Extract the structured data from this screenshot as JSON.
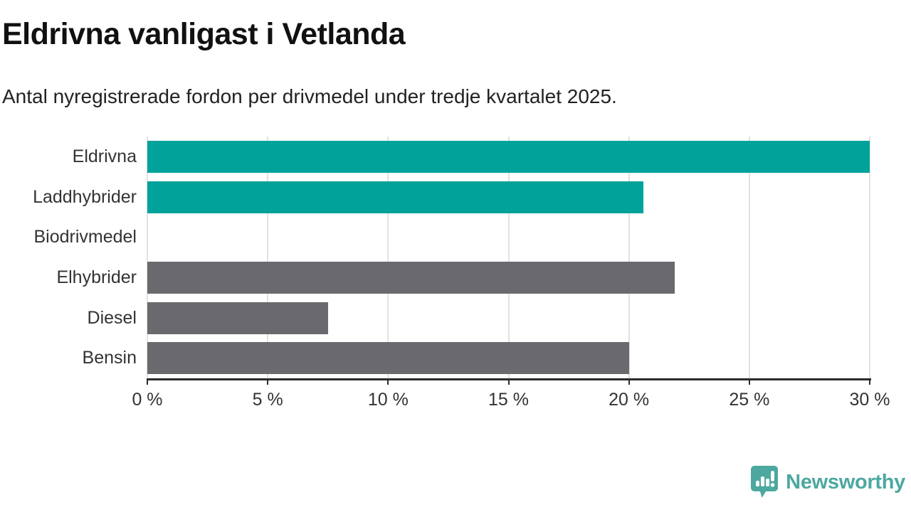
{
  "title": "Eldrivna vanligast i Vetlanda",
  "subtitle": "Antal nyregistrerade fordon per drivmedel under tredje kvartalet 2025.",
  "chart_data": {
    "type": "bar",
    "orientation": "horizontal",
    "title": "Eldrivna vanligast i Vetlanda",
    "subtitle": "Antal nyregistrerade fordon per drivmedel under tredje kvartalet 2025.",
    "categories": [
      "Eldrivna",
      "Laddhybrider",
      "Biodrivmedel",
      "Elhybrider",
      "Diesel",
      "Bensin"
    ],
    "values": [
      30,
      20.6,
      0,
      21.9,
      7.5,
      20
    ],
    "unit": "%",
    "bar_colors": [
      "#00a29a",
      "#00a29a",
      "#00a29a",
      "#6a6a6e",
      "#6a6a6e",
      "#6a6a6e"
    ],
    "highlight_color": "#00a29a",
    "default_color": "#6a6a6e",
    "xlim": [
      0,
      30
    ],
    "x_ticks": [
      0,
      5,
      10,
      15,
      20,
      25,
      30
    ],
    "x_tick_labels": [
      "0 %",
      "5 %",
      "10 %",
      "15 %",
      "20 %",
      "25 %",
      "30 %"
    ],
    "grid": true,
    "gridline_color": "#e2e2e2",
    "axis_color": "#2b2b2b",
    "legend_position": "none"
  },
  "branding": {
    "logo_text": "Newsworthy",
    "logo_color": "#4ca8a0",
    "logo_icon": "speech-bubble-bar-chart-icon"
  }
}
